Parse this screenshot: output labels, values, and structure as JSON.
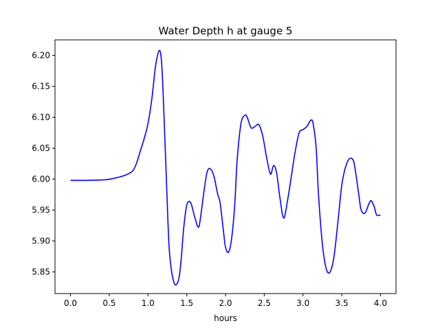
{
  "chart_data": {
    "type": "line",
    "title": "Water Depth h at gauge 5",
    "xlabel": "hours",
    "ylabel": "",
    "xlim": [
      -0.2,
      4.2
    ],
    "ylim": [
      5.815,
      6.225
    ],
    "grid": false,
    "legend": "none",
    "xticks": [
      0.0,
      0.5,
      1.0,
      1.5,
      2.0,
      2.5,
      3.0,
      3.5,
      4.0
    ],
    "xtick_labels": [
      "0.0",
      "0.5",
      "1.0",
      "1.5",
      "2.0",
      "2.5",
      "3.0",
      "3.5",
      "4.0"
    ],
    "yticks": [
      5.85,
      5.9,
      5.95,
      6.0,
      6.05,
      6.1,
      6.15,
      6.2
    ],
    "ytick_labels": [
      "5.85",
      "5.90",
      "5.95",
      "6.00",
      "6.05",
      "6.10",
      "6.15",
      "6.20"
    ],
    "series": [
      {
        "color": "#0000ff",
        "x": [
          0.0,
          0.2,
          0.45,
          0.55,
          0.7,
          0.8,
          0.85,
          0.9,
          0.95,
          1.0,
          1.05,
          1.1,
          1.15,
          1.18,
          1.21,
          1.24,
          1.27,
          1.3,
          1.33,
          1.36,
          1.4,
          1.43,
          1.46,
          1.5,
          1.55,
          1.6,
          1.65,
          1.68,
          1.72,
          1.76,
          1.8,
          1.85,
          1.9,
          1.93,
          1.97,
          2.0,
          2.04,
          2.08,
          2.12,
          2.15,
          2.2,
          2.25,
          2.28,
          2.33,
          2.38,
          2.43,
          2.48,
          2.53,
          2.58,
          2.62,
          2.66,
          2.7,
          2.75,
          2.8,
          2.85,
          2.9,
          2.95,
          3.0,
          3.05,
          3.1,
          3.13,
          3.17,
          3.2,
          3.25,
          3.3,
          3.35,
          3.4,
          3.45,
          3.5,
          3.55,
          3.6,
          3.65,
          3.68,
          3.72,
          3.75,
          3.8,
          3.85,
          3.88,
          3.92,
          3.95,
          4.0
        ],
        "y": [
          5.998,
          5.998,
          5.999,
          6.001,
          6.006,
          6.013,
          6.025,
          6.045,
          6.065,
          6.09,
          6.13,
          6.185,
          6.208,
          6.18,
          6.09,
          5.99,
          5.895,
          5.855,
          5.835,
          5.829,
          5.84,
          5.873,
          5.92,
          5.958,
          5.962,
          5.94,
          5.922,
          5.94,
          5.978,
          6.01,
          6.017,
          6.005,
          5.975,
          5.962,
          5.92,
          5.89,
          5.882,
          5.905,
          5.96,
          6.03,
          6.09,
          6.103,
          6.1,
          6.083,
          6.085,
          6.088,
          6.07,
          6.035,
          6.008,
          6.022,
          6.01,
          5.972,
          5.937,
          5.965,
          6.005,
          6.045,
          6.075,
          6.08,
          6.085,
          6.095,
          6.09,
          6.05,
          5.975,
          5.895,
          5.855,
          5.85,
          5.875,
          5.93,
          5.99,
          6.02,
          6.033,
          6.03,
          6.01,
          5.975,
          5.95,
          5.945,
          5.96,
          5.965,
          5.955,
          5.942,
          5.942
        ]
      }
    ]
  }
}
